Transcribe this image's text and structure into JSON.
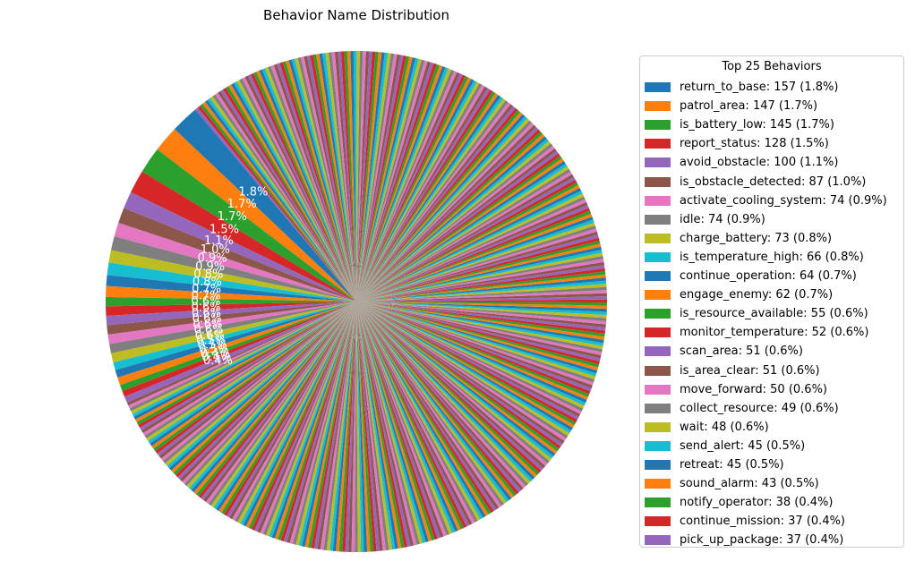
{
  "chart_data": {
    "type": "pie",
    "title": "Behavior Name Distribution",
    "legend_title": "Top 25 Behaviors",
    "legend_position": "right",
    "start_angle_deg": 130,
    "direction": "counterclockwise",
    "remaining_slice_count": 400,
    "palette": [
      "#1f77b4",
      "#ff7f0e",
      "#2ca02c",
      "#d62728",
      "#9467bd",
      "#8c564b",
      "#e377c2",
      "#7f7f7f",
      "#bcbd22",
      "#17becf"
    ],
    "slices": [
      {
        "name": "return_to_base",
        "value": 157,
        "percent": 1.8,
        "legend": "return_to_base: 157 (1.8%)",
        "pct_label": "1.8%"
      },
      {
        "name": "patrol_area",
        "value": 147,
        "percent": 1.7,
        "legend": "patrol_area: 147 (1.7%)",
        "pct_label": "1.7%"
      },
      {
        "name": "is_battery_low",
        "value": 145,
        "percent": 1.7,
        "legend": "is_battery_low: 145 (1.7%)",
        "pct_label": "1.7%"
      },
      {
        "name": "report_status",
        "value": 128,
        "percent": 1.5,
        "legend": "report_status: 128 (1.5%)",
        "pct_label": "1.5%"
      },
      {
        "name": "avoid_obstacle",
        "value": 100,
        "percent": 1.1,
        "legend": "avoid_obstacle: 100 (1.1%)",
        "pct_label": "1.1%"
      },
      {
        "name": "is_obstacle_detected",
        "value": 87,
        "percent": 1.0,
        "legend": "is_obstacle_detected: 87 (1.0%)",
        "pct_label": "1.0%"
      },
      {
        "name": "activate_cooling_system",
        "value": 74,
        "percent": 0.9,
        "legend": "activate_cooling_system: 74 (0.9%)",
        "pct_label": "0.9%"
      },
      {
        "name": "idle",
        "value": 74,
        "percent": 0.9,
        "legend": "idle: 74 (0.9%)",
        "pct_label": "0.9%"
      },
      {
        "name": "charge_battery",
        "value": 73,
        "percent": 0.8,
        "legend": "charge_battery: 73 (0.8%)",
        "pct_label": "0.8%"
      },
      {
        "name": "is_temperature_high",
        "value": 66,
        "percent": 0.8,
        "legend": "is_temperature_high: 66 (0.8%)",
        "pct_label": "0.8%"
      },
      {
        "name": "continue_operation",
        "value": 64,
        "percent": 0.7,
        "legend": "continue_operation: 64 (0.7%)",
        "pct_label": "0.7%"
      },
      {
        "name": "engage_enemy",
        "value": 62,
        "percent": 0.7,
        "legend": "engage_enemy: 62 (0.7%)",
        "pct_label": "0.7%"
      },
      {
        "name": "is_resource_available",
        "value": 55,
        "percent": 0.6,
        "legend": "is_resource_available: 55 (0.6%)",
        "pct_label": "0.6%"
      },
      {
        "name": "monitor_temperature",
        "value": 52,
        "percent": 0.6,
        "legend": "monitor_temperature: 52 (0.6%)",
        "pct_label": "0.6%"
      },
      {
        "name": "scan_area",
        "value": 51,
        "percent": 0.6,
        "legend": "scan_area: 51 (0.6%)",
        "pct_label": "0.6%"
      },
      {
        "name": "is_area_clear",
        "value": 51,
        "percent": 0.6,
        "legend": "is_area_clear: 51 (0.6%)",
        "pct_label": "0.6%"
      },
      {
        "name": "move_forward",
        "value": 50,
        "percent": 0.6,
        "legend": "move_forward: 50 (0.6%)",
        "pct_label": "0.6%"
      },
      {
        "name": "collect_resource",
        "value": 49,
        "percent": 0.6,
        "legend": "collect_resource: 49 (0.6%)",
        "pct_label": "0.6%"
      },
      {
        "name": "wait",
        "value": 48,
        "percent": 0.6,
        "legend": "wait: 48 (0.6%)",
        "pct_label": "0.6%"
      },
      {
        "name": "send_alert",
        "value": 45,
        "percent": 0.5,
        "legend": "send_alert: 45 (0.5%)",
        "pct_label": "0.5%"
      },
      {
        "name": "retreat",
        "value": 45,
        "percent": 0.5,
        "legend": "retreat: 45 (0.5%)",
        "pct_label": "0.5%"
      },
      {
        "name": "sound_alarm",
        "value": 43,
        "percent": 0.5,
        "legend": "sound_alarm: 43 (0.5%)",
        "pct_label": "0.5%"
      },
      {
        "name": "notify_operator",
        "value": 38,
        "percent": 0.4,
        "legend": "notify_operator: 38 (0.4%)",
        "pct_label": "0.4%"
      },
      {
        "name": "continue_mission",
        "value": 37,
        "percent": 0.4,
        "legend": "continue_mission: 37 (0.4%)",
        "pct_label": "0.4%"
      },
      {
        "name": "pick_up_package",
        "value": 37,
        "percent": 0.4,
        "legend": "pick_up_package: 37 (0.4%)",
        "pct_label": "0.4%"
      }
    ]
  }
}
